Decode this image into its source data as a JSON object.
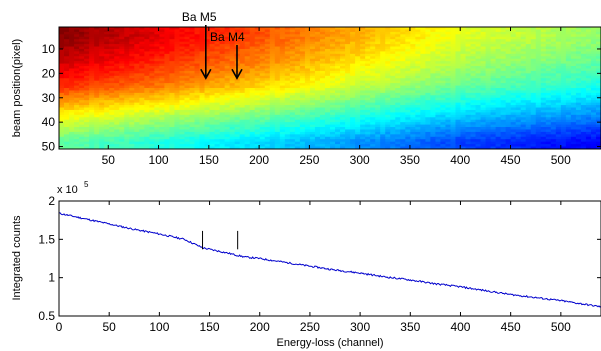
{
  "chart_data": [
    {
      "type": "heatmap",
      "title": "",
      "xlabel": "",
      "ylabel": "beam position(pixel)",
      "xlim": [
        1,
        540
      ],
      "ylim": [
        51,
        1
      ],
      "xticks": [
        50,
        100,
        150,
        200,
        250,
        300,
        350,
        400,
        450,
        500
      ],
      "yticks": [
        10,
        20,
        30,
        40,
        50
      ],
      "colormap": "jet",
      "intensity_profile": [
        {
          "x": 1,
          "row_band_values": [
            1.0,
            0.93,
            0.84,
            0.62,
            0.47
          ]
        },
        {
          "x": 100,
          "row_band_values": [
            0.9,
            0.84,
            0.76,
            0.55,
            0.41
          ]
        },
        {
          "x": 200,
          "row_band_values": [
            0.8,
            0.75,
            0.67,
            0.48,
            0.34
          ]
        },
        {
          "x": 300,
          "row_band_values": [
            0.7,
            0.65,
            0.57,
            0.4,
            0.27
          ]
        },
        {
          "x": 400,
          "row_band_values": [
            0.6,
            0.55,
            0.48,
            0.32,
            0.19
          ]
        },
        {
          "x": 540,
          "row_band_values": [
            0.52,
            0.47,
            0.4,
            0.25,
            0.12
          ]
        }
      ],
      "row_bands": [
        5,
        15,
        25,
        38,
        48
      ],
      "annotations": [
        {
          "text": "Ba M5",
          "arrow_x": 147,
          "arrow_tip_y": 22
        },
        {
          "text": "Ba M4",
          "arrow_x": 178,
          "arrow_tip_y": 22
        }
      ]
    },
    {
      "type": "line",
      "title": "",
      "xlabel": "Energy-loss (channel)",
      "ylabel": "Integrated counts",
      "y_multiplier_label": "x 10",
      "y_multiplier_exponent": "5",
      "xlim": [
        0,
        540
      ],
      "ylim": [
        0.5,
        2
      ],
      "xticks": [
        0,
        50,
        100,
        150,
        200,
        250,
        300,
        350,
        400,
        450,
        500
      ],
      "yticks": [
        0.5,
        1,
        1.5,
        2
      ],
      "series": [
        {
          "color": "#0000cc",
          "x": [
            0,
            25,
            50,
            75,
            100,
            125,
            143,
            150,
            165,
            178,
            185,
            200,
            225,
            250,
            275,
            300,
            325,
            350,
            375,
            400,
            425,
            450,
            475,
            500,
            525,
            540
          ],
          "y": [
            1.84,
            1.77,
            1.7,
            1.63,
            1.57,
            1.5,
            1.39,
            1.37,
            1.33,
            1.29,
            1.27,
            1.25,
            1.2,
            1.15,
            1.1,
            1.06,
            1.01,
            0.97,
            0.92,
            0.88,
            0.83,
            0.78,
            0.74,
            0.7,
            0.65,
            0.62
          ]
        }
      ],
      "marker_lines_x": [
        143,
        178
      ],
      "marker_lines_yrange": [
        1.37,
        1.61
      ]
    }
  ]
}
